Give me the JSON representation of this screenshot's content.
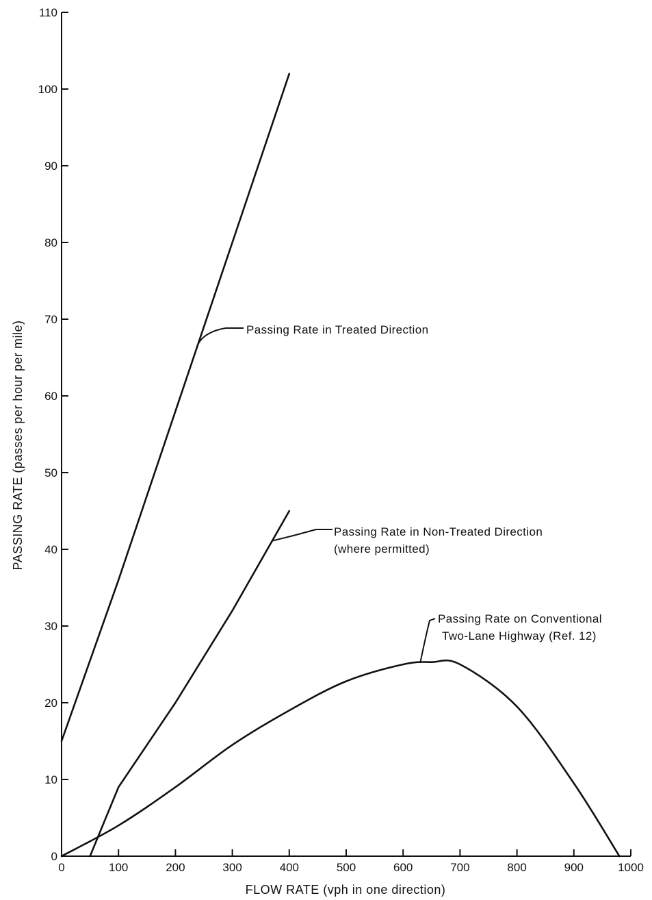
{
  "chart_data": {
    "type": "line",
    "title": "",
    "xlabel": "FLOW RATE (vph in one direction)",
    "ylabel": "PASSING RATE (passes per hour per mile)",
    "xlim": [
      0,
      1000
    ],
    "ylim": [
      0,
      110
    ],
    "x_ticks": [
      0,
      100,
      200,
      300,
      400,
      500,
      600,
      700,
      800,
      900,
      1000
    ],
    "y_ticks": [
      0,
      10,
      20,
      30,
      40,
      50,
      60,
      70,
      80,
      90,
      100,
      110
    ],
    "grid": false,
    "legend": "none",
    "series": [
      {
        "name": "Passing Rate in Treated Direction",
        "x": [
          0,
          100,
          200,
          300,
          400
        ],
        "y": [
          15,
          36,
          58,
          80,
          102
        ]
      },
      {
        "name": "Passing Rate in Non-Treated Direction (where permitted)",
        "x": [
          50,
          100,
          200,
          300,
          400
        ],
        "y": [
          0,
          9,
          20,
          32,
          45
        ]
      },
      {
        "name": "Passing Rate on Conventional Two-Lane Highway (Ref. 12)",
        "x": [
          0,
          100,
          200,
          300,
          400,
          500,
          600,
          650,
          700,
          800,
          900,
          980
        ],
        "y": [
          0,
          4,
          9,
          14.5,
          19,
          22.8,
          25,
          25.3,
          25,
          19.5,
          9.5,
          0
        ]
      }
    ],
    "annotations": [
      {
        "lines": [
          "Passing Rate in Treated Direction"
        ],
        "series": 0,
        "at_x": 240
      },
      {
        "lines": [
          "Passing Rate in Non-Treated Direction",
          "(where permitted)"
        ],
        "series": 1,
        "at_x": 370
      },
      {
        "lines": [
          "Passing Rate on Conventional",
          "Two-Lane Highway (Ref. 12)"
        ],
        "series": 2,
        "at_x": 630
      }
    ]
  }
}
